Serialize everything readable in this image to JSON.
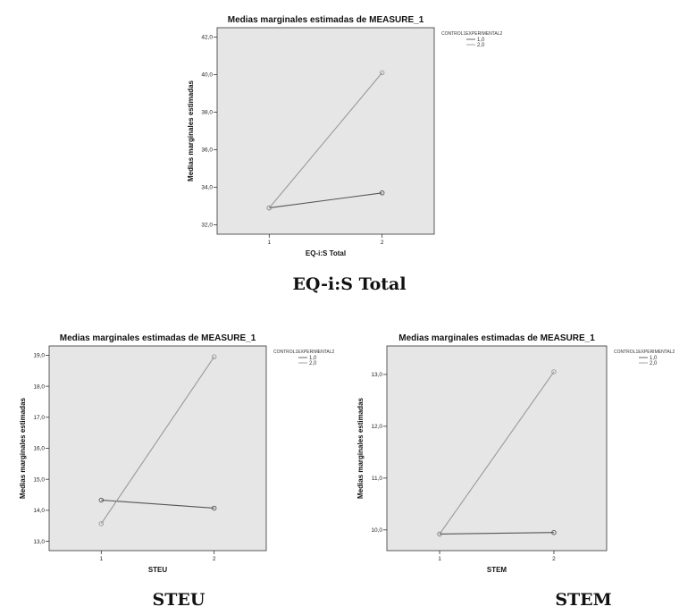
{
  "captions": {
    "top": "EQ-i:S Total",
    "left": "STEU",
    "right": "STEM"
  },
  "colors": {
    "plot_bg": "#e6e6e6",
    "series_1": "#555555",
    "series_2": "#999999"
  },
  "chart_data": [
    {
      "type": "line",
      "title": "Medias marginales estimadas de MEASURE_1",
      "xlabel": "EQ-i:S Total",
      "ylabel": "Medias marginales estimadas",
      "x": [
        "1",
        "2"
      ],
      "ylim": [
        31.5,
        42.5
      ],
      "yticks": [
        32.0,
        34.0,
        36.0,
        38.0,
        40.0,
        42.0
      ],
      "ytick_labels": [
        "32,0",
        "34,0",
        "36,0",
        "38,0",
        "40,0",
        "42,0"
      ],
      "legend_title": "CONTROL1EXPERIMENTAL2",
      "legend_position": "top-right outside",
      "series": [
        {
          "name": "1,0",
          "values": [
            32.9,
            33.7
          ]
        },
        {
          "name": "2,0",
          "values": [
            32.9,
            40.1
          ]
        }
      ]
    },
    {
      "type": "line",
      "title": "Medias marginales estimadas de MEASURE_1",
      "xlabel": "STEU",
      "ylabel": "Medias marginales estimadas",
      "x": [
        "1",
        "2"
      ],
      "ylim": [
        12.7,
        19.3
      ],
      "yticks": [
        13.0,
        14.0,
        15.0,
        16.0,
        17.0,
        18.0,
        19.0
      ],
      "ytick_labels": [
        "13,0",
        "14,0",
        "15,0",
        "16,0",
        "17,0",
        "18,0",
        "19,0"
      ],
      "legend_title": "CONTROL1EXPERIMENTAL2",
      "legend_position": "top-right outside",
      "series": [
        {
          "name": "1,0",
          "values": [
            14.33,
            14.07
          ]
        },
        {
          "name": "2,0",
          "values": [
            13.57,
            18.95
          ]
        }
      ]
    },
    {
      "type": "line",
      "title": "Medias marginales estimadas de MEASURE_1",
      "xlabel": "STEM",
      "ylabel": "Medias marginales estimadas",
      "x": [
        "1",
        "2"
      ],
      "ylim": [
        9.6,
        13.55
      ],
      "yticks": [
        10.0,
        11.0,
        12.0,
        13.0
      ],
      "ytick_labels": [
        "10,0",
        "11,0",
        "12,0",
        "13,0"
      ],
      "legend_title": "CONTROL1EXPERIMENTAL2",
      "legend_position": "top-right outside",
      "series": [
        {
          "name": "1,0",
          "values": [
            9.92,
            9.95
          ]
        },
        {
          "name": "2,0",
          "values": [
            9.92,
            13.05
          ]
        }
      ]
    }
  ]
}
